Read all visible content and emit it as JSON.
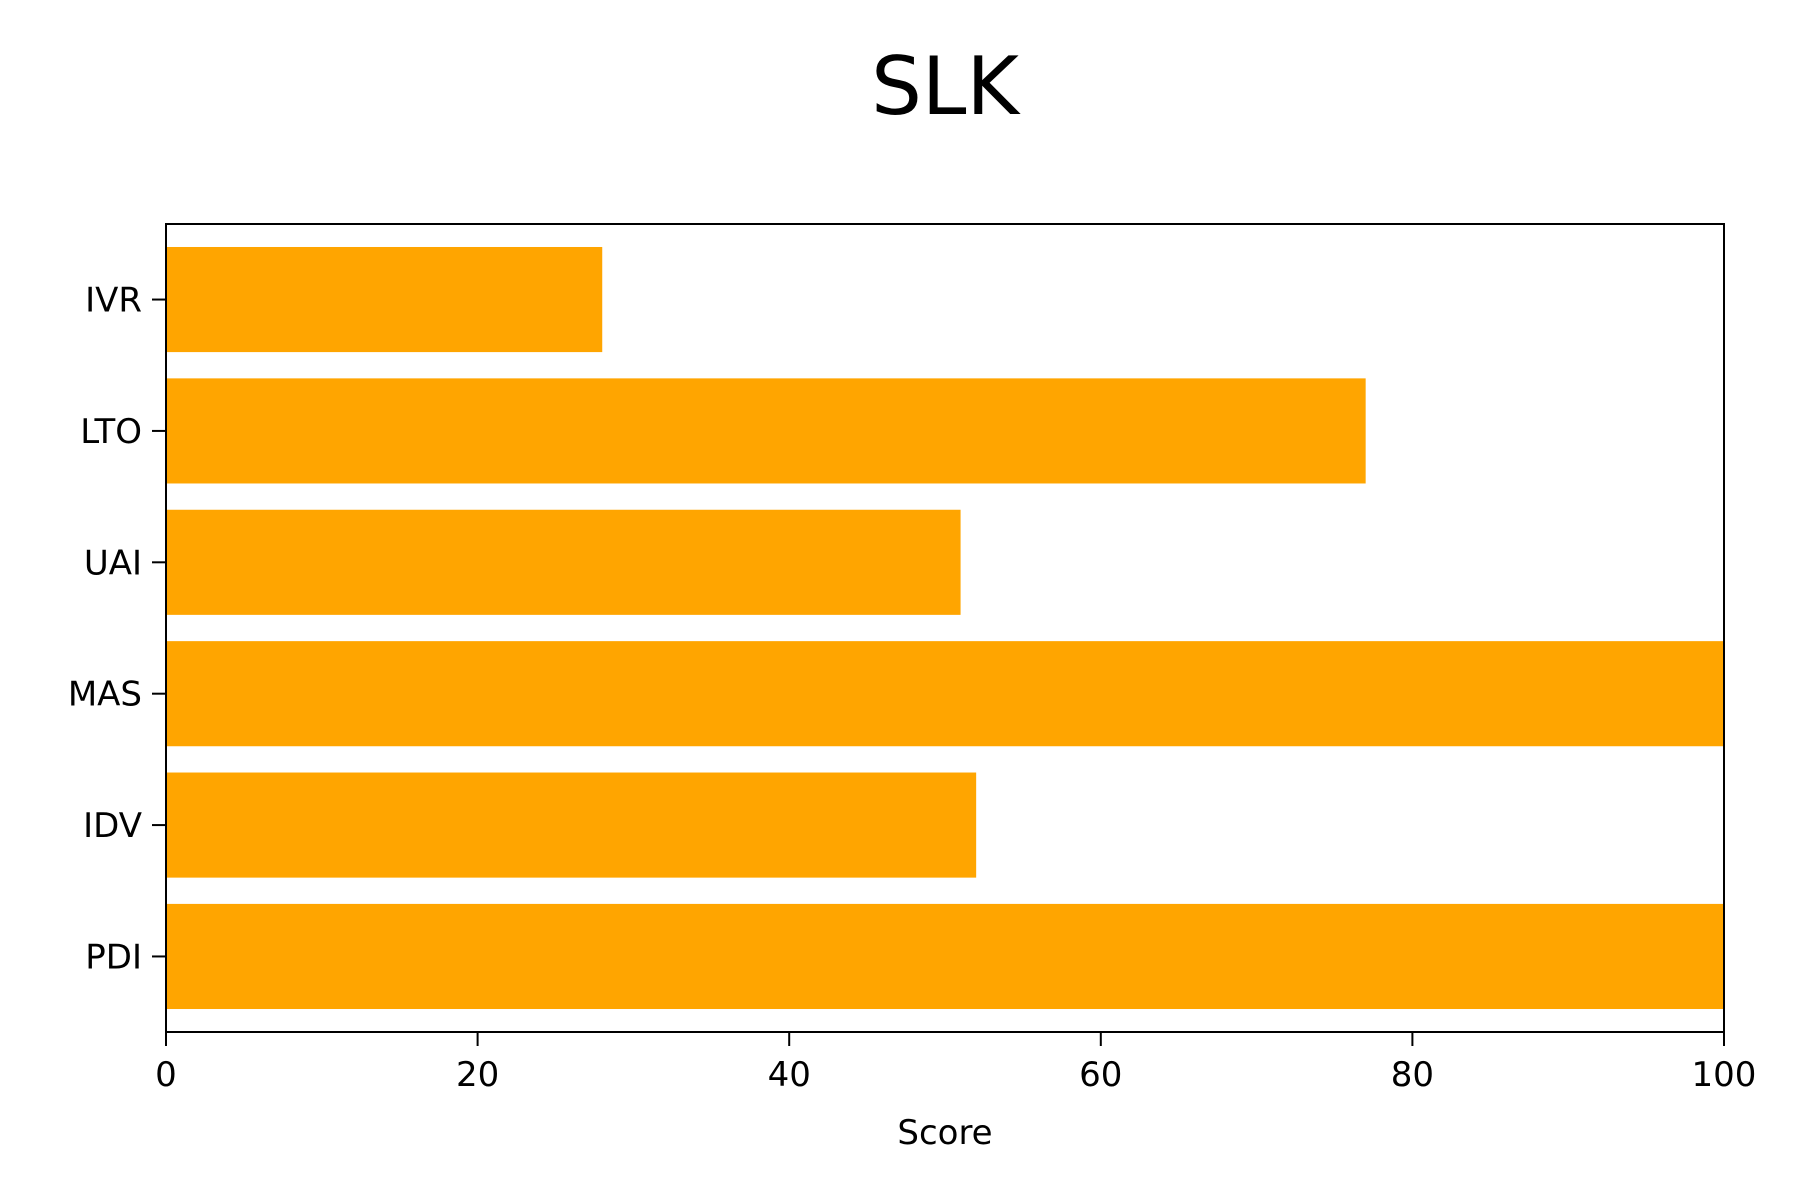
{
  "chart_data": {
    "type": "bar",
    "orientation": "horizontal",
    "title": "SLK",
    "xlabel": "Score",
    "ylabel": "",
    "categories": [
      "PDI",
      "IDV",
      "MAS",
      "UAI",
      "LTO",
      "IVR"
    ],
    "values": [
      100,
      52,
      100,
      51,
      77,
      28
    ],
    "xlim": [
      0,
      100
    ],
    "xticks": [
      0,
      20,
      40,
      60,
      80,
      100
    ],
    "bar_color": "#ffa500",
    "grid": false,
    "legend": "none"
  }
}
